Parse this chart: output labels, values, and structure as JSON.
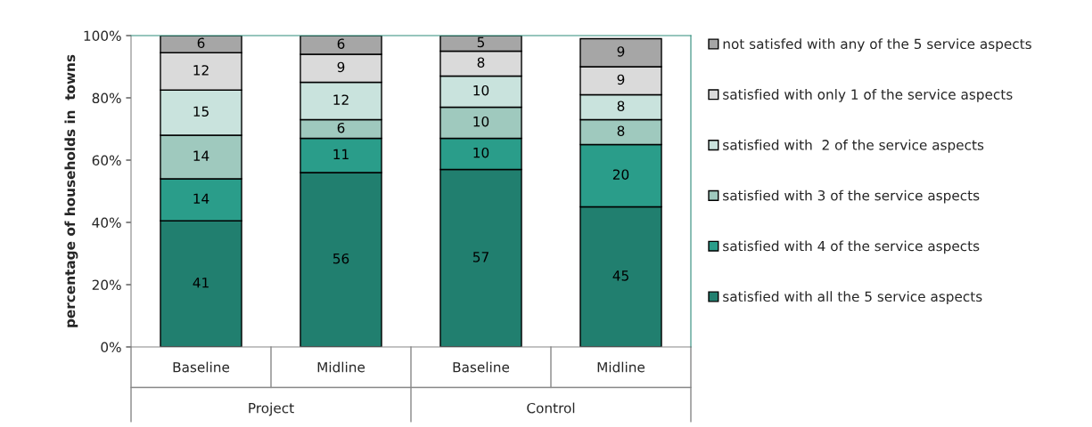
{
  "chart_data": {
    "type": "bar",
    "stacked": true,
    "ylabel": "percentage of households in  towns",
    "categories": [
      "Baseline",
      "Midline",
      "Baseline",
      "Midline"
    ],
    "annotations": [
      "Project",
      "Control"
    ],
    "series": [
      {
        "name": "satisfied with all the 5 service aspects",
        "color": "#217f6f",
        "values": [
          40.5,
          56,
          57,
          45
        ],
        "value_labels": [
          "41",
          "56",
          "57",
          "45"
        ]
      },
      {
        "name": "satisfied with 4 of the service aspects",
        "color": "#2a9d8a",
        "values": [
          13.5,
          11,
          10,
          20
        ],
        "value_labels": [
          "14",
          "11",
          "10",
          "20"
        ]
      },
      {
        "name": "satisfied with 3 of the service aspects",
        "color": "#9fc9be",
        "values": [
          14,
          6,
          10,
          8
        ],
        "value_labels": [
          "14",
          "6",
          "10",
          "8"
        ]
      },
      {
        "name": "satisfied with  2 of the service aspects",
        "color": "#c9e3dd",
        "values": [
          14.5,
          12,
          10,
          8
        ],
        "value_labels": [
          "15",
          "12",
          "10",
          "8"
        ]
      },
      {
        "name": "satisfied with only 1 of the service aspects",
        "color": "#dadada",
        "values": [
          12,
          9,
          8,
          9
        ],
        "value_labels": [
          "12",
          "9",
          "8",
          "9"
        ]
      },
      {
        "name": "not satisfed with any of the 5 service aspects",
        "color": "#a6a6a6",
        "values": [
          5.5,
          6,
          5,
          9
        ],
        "value_labels": [
          "6",
          "6",
          "5",
          "9"
        ]
      }
    ],
    "ylim": [
      0,
      100
    ],
    "yticks": [
      {
        "value": 0,
        "label": "0%"
      },
      {
        "value": 20,
        "label": "20%"
      },
      {
        "value": 40,
        "label": "40%"
      },
      {
        "value": 60,
        "label": "60%"
      },
      {
        "value": 80,
        "label": "80%"
      },
      {
        "value": 100,
        "label": "100%"
      }
    ],
    "legend": "right",
    "grid": false
  }
}
